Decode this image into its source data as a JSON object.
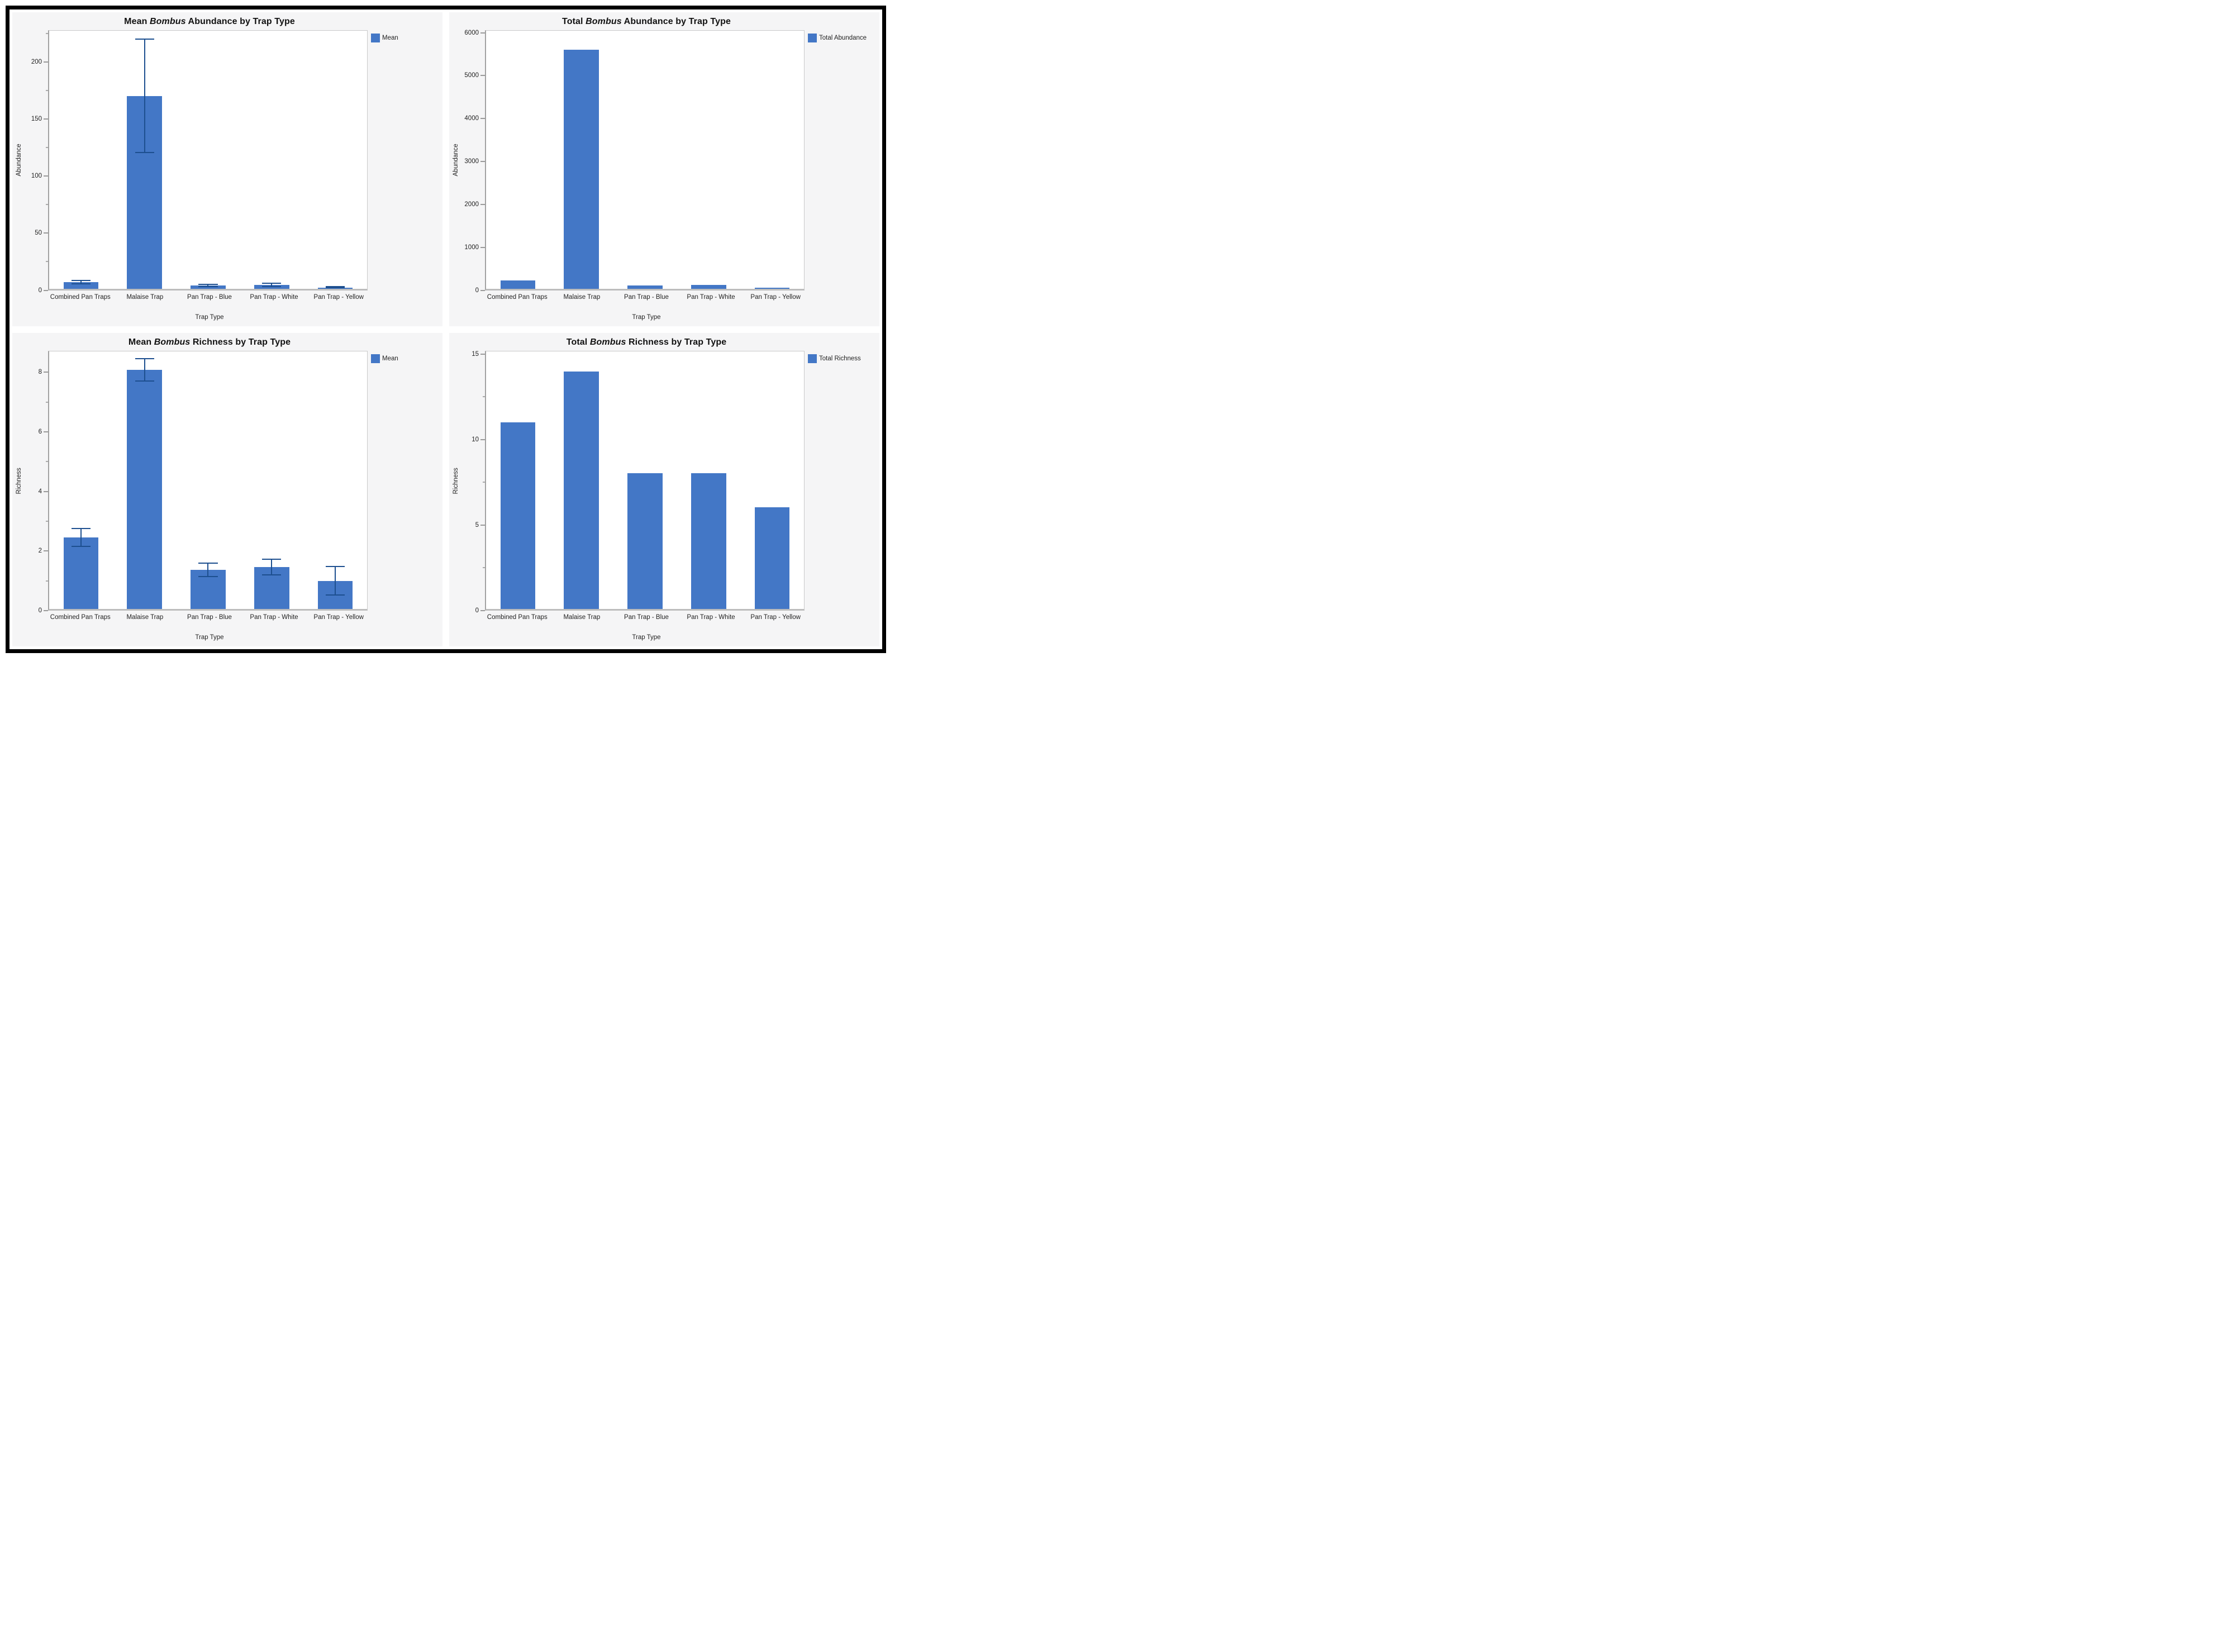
{
  "colors": {
    "bar_fill": "#4377C6",
    "error_bar": "#1D4F8F",
    "panel_bg": "#f5f5f6",
    "plot_border": "#c9c9c9",
    "axis_line": "#a2a2a2",
    "frame": "#000000",
    "text": "#111111"
  },
  "charts": [
    {
      "id": "mean-abundance",
      "title_prefix": "Mean ",
      "title_italic": "Bombus",
      "title_suffix": " Abundance by Trap Type",
      "legend_label": "Mean",
      "ylabel": "Abundance",
      "xlabel": "Trap Type",
      "type": "bar",
      "categories": [
        "Combined Pan Traps",
        "Malaise Trap",
        "Pan Trap - Blue",
        "Pan Trap - White",
        "Pan Trap - Yellow"
      ],
      "values": [
        5.5,
        170,
        2.5,
        3,
        0.9
      ],
      "error_low": [
        3.5,
        120,
        1.0,
        1.2,
        0.3
      ],
      "error_high": [
        7.5,
        221,
        4.0,
        5.0,
        1.5
      ],
      "ylim": [
        0,
        228
      ],
      "yticks": [
        0,
        50,
        100,
        150,
        200
      ],
      "minor_step": 25
    },
    {
      "id": "total-abundance",
      "title_prefix": "Total ",
      "title_italic": "Bombus",
      "title_suffix": " Abundance by Trap Type",
      "legend_label": "Total Abundance",
      "ylabel": "Abundance",
      "xlabel": "Trap Type",
      "type": "bar",
      "categories": [
        "Combined Pan Traps",
        "Malaise Trap",
        "Pan Trap - Blue",
        "Pan Trap - White",
        "Pan Trap - Yellow"
      ],
      "values": [
        190,
        5620,
        75,
        80,
        20
      ],
      "error_low": null,
      "error_high": null,
      "ylim": [
        0,
        6060
      ],
      "yticks": [
        0,
        1000,
        2000,
        3000,
        4000,
        5000,
        6000
      ],
      "minor_step": null
    },
    {
      "id": "mean-richness",
      "title_prefix": "Mean ",
      "title_italic": "Bombus",
      "title_suffix": " Richness by Trap Type",
      "legend_label": "Mean",
      "ylabel": "Richness",
      "xlabel": "Trap Type",
      "type": "bar",
      "categories": [
        "Combined Pan Traps",
        "Malaise Trap",
        "Pan Trap - Blue",
        "Pan Trap - White",
        "Pan Trap - Yellow"
      ],
      "values": [
        2.42,
        8.1,
        1.33,
        1.42,
        0.95
      ],
      "error_low": [
        2.1,
        7.7,
        1.08,
        1.13,
        0.45
      ],
      "error_high": [
        2.75,
        8.5,
        1.58,
        1.7,
        1.45
      ],
      "ylim": [
        0,
        8.73
      ],
      "yticks": [
        0,
        2,
        4,
        6,
        8
      ],
      "minor_step": 1
    },
    {
      "id": "total-richness",
      "title_prefix": "Total ",
      "title_italic": "Bombus",
      "title_suffix": " Richness by Trap Type",
      "legend_label": "Total Richness",
      "ylabel": "Richness",
      "xlabel": "Trap Type",
      "type": "bar",
      "categories": [
        "Combined Pan Traps",
        "Malaise Trap",
        "Pan Trap - Blue",
        "Pan Trap - White",
        "Pan Trap - Yellow"
      ],
      "values": [
        11,
        14,
        8,
        8,
        6
      ],
      "error_low": null,
      "error_high": null,
      "ylim": [
        0,
        15.2
      ],
      "yticks": [
        0,
        5,
        10,
        15
      ],
      "minor_step": 2.5
    }
  ],
  "chart_data": [
    {
      "type": "bar",
      "title": "Mean Bombus Abundance by Trap Type",
      "categories": [
        "Combined Pan Traps",
        "Malaise Trap",
        "Pan Trap - Blue",
        "Pan Trap - White",
        "Pan Trap - Yellow"
      ],
      "values": [
        5.5,
        170,
        2.5,
        3,
        0.9
      ],
      "error_low": [
        3.5,
        120,
        1.0,
        1.2,
        0.3
      ],
      "error_high": [
        7.5,
        221,
        4.0,
        5.0,
        1.5
      ],
      "xlabel": "Trap Type",
      "ylabel": "Abundance",
      "ylim": [
        0,
        228
      ],
      "yticks": [
        0,
        50,
        100,
        150,
        200
      ],
      "legend": [
        "Mean"
      ],
      "legend_position": "top-right",
      "grid": false
    },
    {
      "type": "bar",
      "title": "Total Bombus Abundance by Trap Type",
      "categories": [
        "Combined Pan Traps",
        "Malaise Trap",
        "Pan Trap - Blue",
        "Pan Trap - White",
        "Pan Trap - Yellow"
      ],
      "values": [
        190,
        5620,
        75,
        80,
        20
      ],
      "xlabel": "Trap Type",
      "ylabel": "Abundance",
      "ylim": [
        0,
        6060
      ],
      "yticks": [
        0,
        1000,
        2000,
        3000,
        4000,
        5000,
        6000
      ],
      "legend": [
        "Total Abundance"
      ],
      "legend_position": "top-right",
      "grid": false
    },
    {
      "type": "bar",
      "title": "Mean Bombus Richness by Trap Type",
      "categories": [
        "Combined Pan Traps",
        "Malaise Trap",
        "Pan Trap - Blue",
        "Pan Trap - White",
        "Pan Trap - Yellow"
      ],
      "values": [
        2.42,
        8.1,
        1.33,
        1.42,
        0.95
      ],
      "error_low": [
        2.1,
        7.7,
        1.08,
        1.13,
        0.45
      ],
      "error_high": [
        2.75,
        8.5,
        1.58,
        1.7,
        1.45
      ],
      "xlabel": "Trap Type",
      "ylabel": "Richness",
      "ylim": [
        0,
        8.73
      ],
      "yticks": [
        0,
        2,
        4,
        6,
        8
      ],
      "legend": [
        "Mean"
      ],
      "legend_position": "top-right",
      "grid": false
    },
    {
      "type": "bar",
      "title": "Total Bombus Richness by Trap Type",
      "categories": [
        "Combined Pan Traps",
        "Malaise Trap",
        "Pan Trap - Blue",
        "Pan Trap - White",
        "Pan Trap - Yellow"
      ],
      "values": [
        11,
        14,
        8,
        8,
        6
      ],
      "xlabel": "Trap Type",
      "ylabel": "Richness",
      "ylim": [
        0,
        15.2
      ],
      "yticks": [
        0,
        5,
        10,
        15
      ],
      "legend": [
        "Total Richness"
      ],
      "legend_position": "top-right",
      "grid": false
    }
  ]
}
